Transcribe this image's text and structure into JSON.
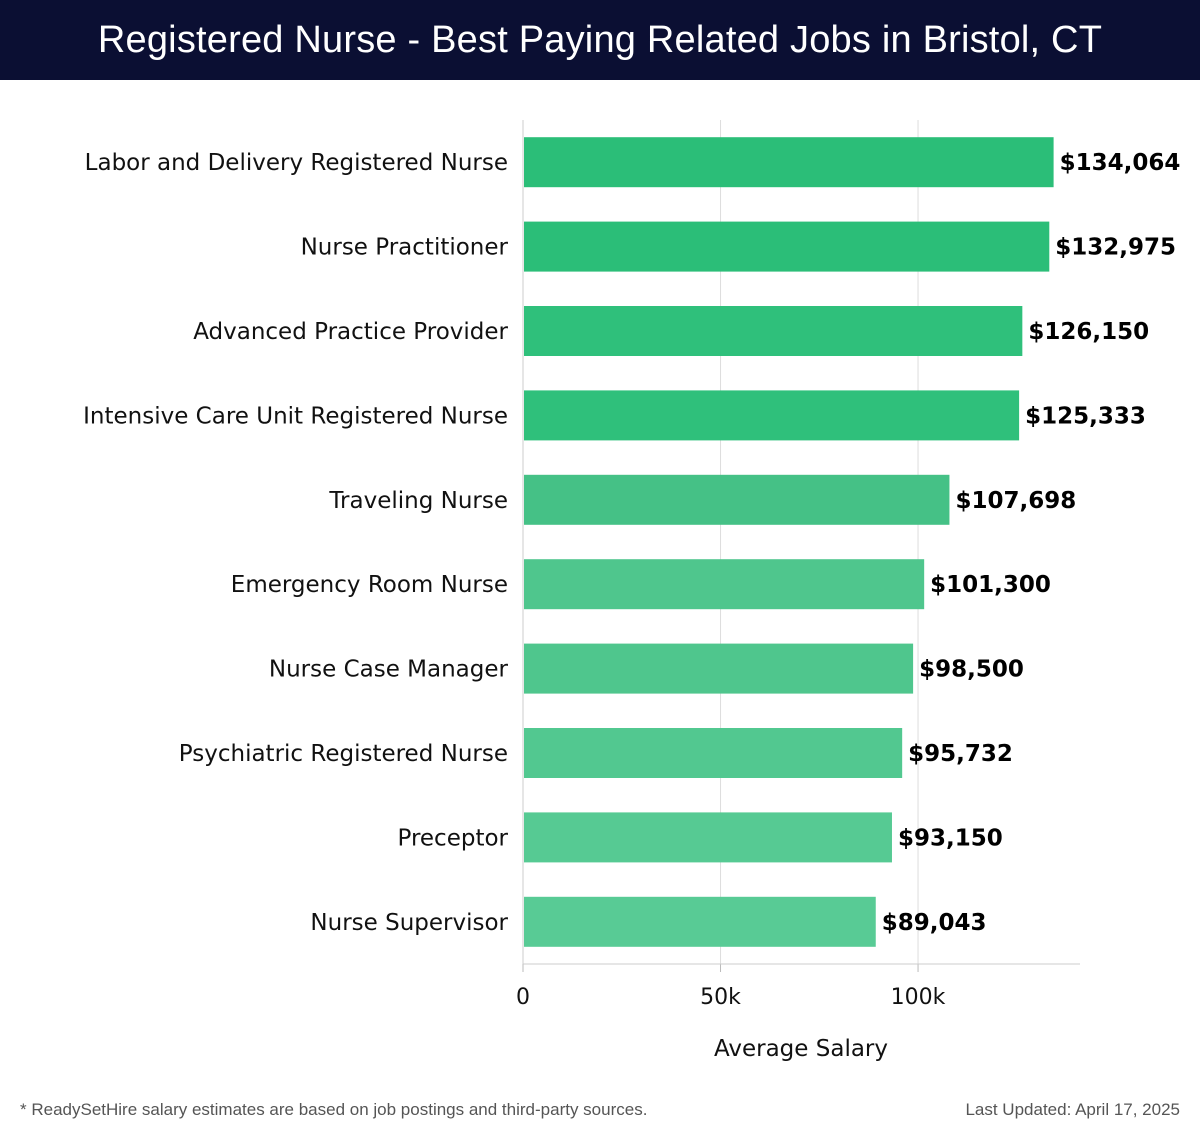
{
  "header": {
    "title": "Registered Nurse - Best Paying Related Jobs in Bristol, CT"
  },
  "footer": {
    "note": "* ReadySetHire salary estimates are based on job postings and third-party sources.",
    "updated": "Last Updated: April 17, 2025"
  },
  "chart_data": {
    "type": "bar",
    "orientation": "horizontal",
    "categories": [
      "Labor and Delivery Registered Nurse",
      "Nurse Practitioner",
      "Advanced Practice Provider",
      "Intensive Care Unit Registered Nurse",
      "Traveling Nurse",
      "Emergency Room Nurse",
      "Nurse Case Manager",
      "Psychiatric Registered Nurse",
      "Preceptor",
      "Nurse Supervisor"
    ],
    "values": [
      134064,
      132975,
      126150,
      125333,
      107698,
      101300,
      98500,
      95732,
      93150,
      89043
    ],
    "value_labels": [
      "$134,064",
      "$132,975",
      "$126,150",
      "$125,333",
      "$107,698",
      "$101,300",
      "$98,500",
      "$95,732",
      "$93,150",
      "$89,043"
    ],
    "xlabel": "Average Salary",
    "ylabel": "",
    "xlim": [
      0,
      141000
    ],
    "xticks": [
      0,
      50000,
      100000
    ],
    "xtick_labels": [
      "0",
      "50k",
      "100k"
    ],
    "grid": true,
    "bar_colors": [
      "#2bbe78",
      "#2bbe78",
      "#2fc07b",
      "#2fc07b",
      "#45c186",
      "#4fc68d",
      "#4fc68d",
      "#52c890",
      "#56ca93",
      "#58cb95"
    ]
  }
}
